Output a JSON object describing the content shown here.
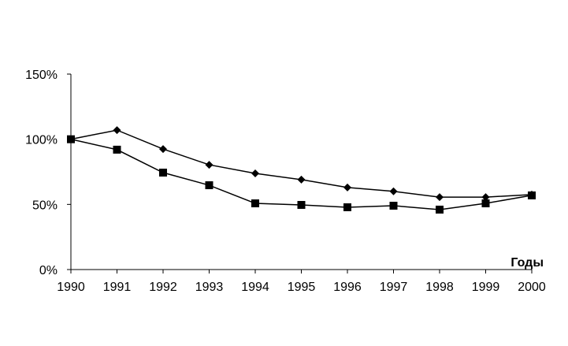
{
  "chart_data": {
    "type": "line",
    "x_label": "Годы",
    "x": [
      1990,
      1991,
      1992,
      1993,
      1994,
      1995,
      1996,
      1997,
      1998,
      1999,
      2000
    ],
    "xlim": [
      1990,
      2000
    ],
    "xticks": [
      1990,
      1991,
      1992,
      1993,
      1994,
      1995,
      1996,
      1997,
      1998,
      1999,
      2000
    ],
    "ylim": [
      0,
      150
    ],
    "yticks": [
      {
        "value": 0,
        "label": "0%"
      },
      {
        "value": 50,
        "label": "50%"
      },
      {
        "value": 100,
        "label": "100%"
      },
      {
        "value": 150,
        "label": "150%"
      }
    ],
    "grid": false,
    "series": [
      {
        "color": "#000000",
        "marker": "diamond",
        "values": [
          100,
          107,
          92.5,
          80.4,
          73.8,
          69,
          63,
          60,
          55.6,
          55.6,
          57.5
        ]
      },
      {
        "color": "#000000",
        "marker": "square",
        "values": [
          100,
          92,
          74.4,
          64.7,
          50.8,
          49.6,
          47.8,
          49,
          46,
          50.8,
          56.9
        ]
      }
    ]
  }
}
